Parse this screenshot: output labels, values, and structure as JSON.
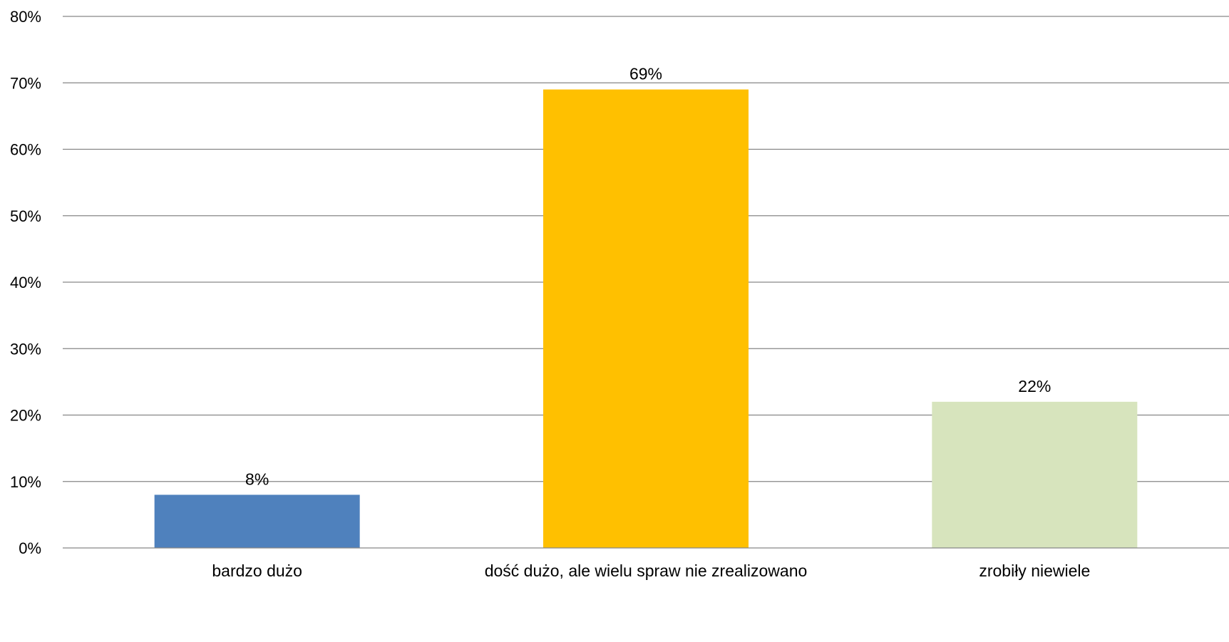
{
  "chart_data": {
    "type": "bar",
    "title": "",
    "xlabel": "",
    "ylabel": "",
    "categories": [
      "bardzo dużo",
      "dość dużo, ale wielu spraw nie zrealizowano",
      "zrobiły niewiele"
    ],
    "values": [
      8,
      69,
      22
    ],
    "data_labels": [
      "8%",
      "69%",
      "22%"
    ],
    "colors": [
      "#4f81bd",
      "#ffc000",
      "#d7e4bd"
    ],
    "ylim": [
      0,
      80
    ],
    "yticks": [
      0,
      10,
      20,
      30,
      40,
      50,
      60,
      70,
      80
    ],
    "ytick_labels": [
      "0%",
      "10%",
      "20%",
      "30%",
      "40%",
      "50%",
      "60%",
      "70%",
      "80%"
    ],
    "grid": true,
    "legend": "none",
    "gridline_color": "#868686"
  }
}
